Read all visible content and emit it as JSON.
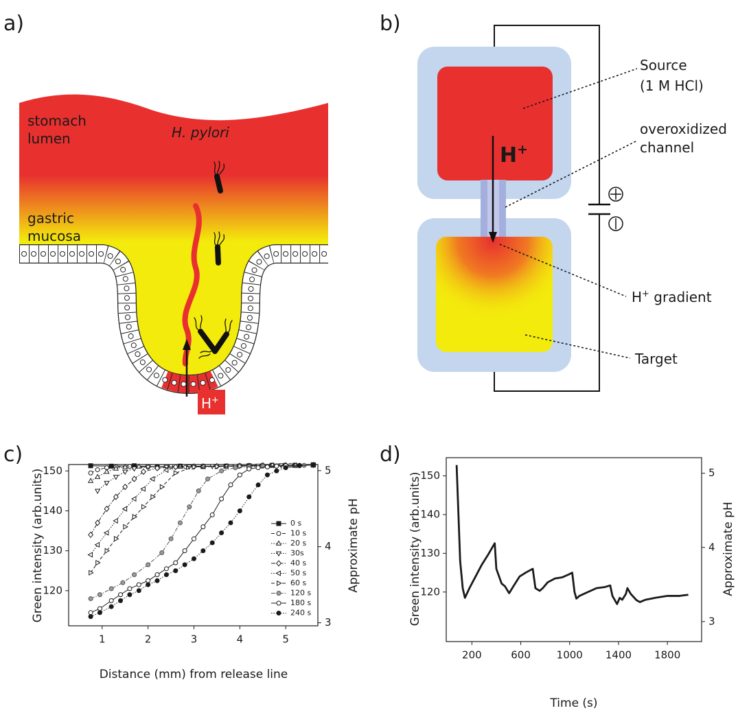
{
  "panel_labels": [
    "a)",
    "b)",
    "c)",
    "d)"
  ],
  "diagram_a": {
    "lumen": [
      "stomach",
      "lumen"
    ],
    "bacteria": "H. pylori",
    "mucosa": [
      "gastric",
      "mucosa"
    ],
    "proton": {
      "base": "H",
      "sup": "+"
    }
  },
  "diagram_b": {
    "source": [
      "Source",
      "(1 M HCl)"
    ],
    "channel": [
      "overoxidized",
      "channel"
    ],
    "gradient": {
      "base": "H",
      "sup": "+",
      "rest": " gradient"
    },
    "target": "Target",
    "proton": {
      "base": "H",
      "sup": "+"
    }
  },
  "chart_data": [
    {
      "type": "line",
      "xlabel": "Distance (mm) from release line",
      "ylabel": "Green intensity (arb.units)",
      "y2label": "Approximate pH",
      "xlim": [
        0.27,
        5.7
      ],
      "xticks": [
        1,
        2,
        3,
        4,
        5
      ],
      "ylim": [
        111.2,
        151.6
      ],
      "yticks": [
        120,
        130,
        140,
        150
      ],
      "y2lim": [
        2.96,
        5.08
      ],
      "y2ticks": [
        3,
        4,
        5
      ],
      "legend": "right",
      "series": [
        {
          "name": "0 s",
          "color": "#1a1a1a",
          "marker": "square",
          "marker_fill": "#1a1a1a",
          "linestyle": "solid",
          "x": [
            0.75,
            1.2,
            1.7,
            2.2,
            2.7,
            3.2,
            3.7,
            4.2,
            4.7,
            5.2,
            5.6
          ],
          "values": [
            151.3,
            151.2,
            151.3,
            151.0,
            151.2,
            151.1,
            151.2,
            151.3,
            151.4,
            151.4,
            151.5
          ]
        },
        {
          "name": "10 s",
          "color": "#1a1a1a",
          "marker": "circle",
          "marker_fill": "#ffffff",
          "linestyle": "dashed",
          "x": [
            0.75,
            0.9,
            1.1,
            1.3,
            1.6,
            2.0,
            2.5,
            3.0,
            3.5,
            4.0,
            4.5,
            5.0,
            5.6
          ],
          "values": [
            149.5,
            150.3,
            150.8,
            151.0,
            151.1,
            151.0,
            151.1,
            151.2,
            151.2,
            151.3,
            151.4,
            151.4,
            151.5
          ]
        },
        {
          "name": "20 s",
          "color": "#1a1a1a",
          "marker": "triangle-up",
          "marker_fill": "#ffffff",
          "linestyle": "dotted",
          "x": [
            0.75,
            0.9,
            1.1,
            1.3,
            1.5,
            1.8,
            2.2,
            2.7,
            3.2,
            3.7,
            4.2,
            4.7,
            5.2,
            5.6
          ],
          "values": [
            147.5,
            148.5,
            149.8,
            150.6,
            151.0,
            151.1,
            151.0,
            151.1,
            151.2,
            151.2,
            151.3,
            151.4,
            151.4,
            151.5
          ]
        },
        {
          "name": "30s",
          "color": "#1a1a1a",
          "marker": "triangle-down",
          "marker_fill": "#ffffff",
          "linestyle": "dotted",
          "x": [
            0.9,
            1.1,
            1.3,
            1.5,
            1.7,
            2.0,
            2.4,
            2.9,
            3.4,
            3.9,
            4.4,
            4.9,
            5.6
          ],
          "values": [
            145,
            147,
            148.5,
            149.8,
            150.6,
            151,
            151,
            151.1,
            151.2,
            151.2,
            151.3,
            151.4,
            151.5
          ]
        },
        {
          "name": "40 s",
          "color": "#1a1a1a",
          "marker": "diamond",
          "marker_fill": "#ffffff",
          "linestyle": "dashdot",
          "x": [
            0.75,
            0.9,
            1.1,
            1.3,
            1.5,
            1.7,
            1.9,
            2.2,
            2.6,
            3.0,
            3.5,
            4.0,
            4.5,
            5.0,
            5.6
          ],
          "values": [
            134,
            137,
            140.5,
            143.5,
            146,
            148,
            149.8,
            150.7,
            151,
            151.1,
            151.2,
            151.3,
            151.4,
            151.4,
            151.5
          ]
        },
        {
          "name": "50 s",
          "color": "#1a1a1a",
          "marker": "triangle-left",
          "marker_fill": "#ffffff",
          "linestyle": "dotted",
          "x": [
            0.75,
            0.9,
            1.1,
            1.3,
            1.5,
            1.7,
            1.9,
            2.1,
            2.4,
            2.8,
            3.2,
            3.7,
            4.2,
            4.7,
            5.2,
            5.6
          ],
          "values": [
            129,
            131.5,
            134.5,
            137.5,
            140.5,
            143,
            145.5,
            148,
            150.2,
            151,
            151.1,
            151.2,
            151.3,
            151.4,
            151.4,
            151.5
          ]
        },
        {
          "name": "60 s",
          "color": "#1a1a1a",
          "marker": "triangle-right",
          "marker_fill": "#ffffff",
          "linestyle": "dashed",
          "x": [
            0.75,
            0.9,
            1.1,
            1.3,
            1.5,
            1.7,
            1.9,
            2.1,
            2.3,
            2.6,
            3.0,
            3.5,
            4.0,
            4.5,
            5.0,
            5.6
          ],
          "values": [
            124.5,
            127,
            130,
            133,
            136,
            138.5,
            141,
            143.5,
            146,
            149.5,
            151,
            151.1,
            151.2,
            151.3,
            151.4,
            151.5
          ]
        },
        {
          "name": "120 s",
          "color": "#555555",
          "marker": "circle",
          "marker_fill": "#9a9a9a",
          "linestyle": "dashdot",
          "x": [
            0.75,
            0.95,
            1.2,
            1.45,
            1.7,
            2.0,
            2.3,
            2.5,
            2.7,
            2.9,
            3.1,
            3.3,
            3.6,
            3.9,
            4.2,
            4.5,
            4.8,
            5.1,
            5.4,
            5.6
          ],
          "values": [
            118,
            119,
            120.5,
            122,
            124,
            126.5,
            129.5,
            133,
            137,
            141,
            145,
            148,
            150,
            150.8,
            151,
            151.2,
            151.3,
            151.4,
            151.4,
            151.5
          ]
        },
        {
          "name": "180 s",
          "color": "#1a1a1a",
          "marker": "circle",
          "marker_fill": "#ffffff",
          "linestyle": "solid",
          "x": [
            0.75,
            0.95,
            1.2,
            1.4,
            1.6,
            1.8,
            2.0,
            2.2,
            2.4,
            2.6,
            2.8,
            3.0,
            3.2,
            3.4,
            3.6,
            3.8,
            4.0,
            4.2,
            4.4,
            4.6,
            4.8,
            5.0,
            5.3,
            5.6
          ],
          "values": [
            114.5,
            115.5,
            117.5,
            119,
            120.5,
            121.5,
            122.5,
            124,
            125.5,
            127,
            130,
            133,
            136,
            139,
            143,
            146.5,
            149,
            150.5,
            150.8,
            151,
            151.2,
            151.3,
            151.4,
            151.5
          ]
        },
        {
          "name": "240 s",
          "color": "#1a1a1a",
          "marker": "circle",
          "marker_fill": "#1a1a1a",
          "linestyle": "dotted",
          "x": [
            0.75,
            0.95,
            1.2,
            1.4,
            1.6,
            1.8,
            2.0,
            2.2,
            2.4,
            2.6,
            2.8,
            3.0,
            3.2,
            3.4,
            3.6,
            3.8,
            4.0,
            4.2,
            4.4,
            4.6,
            4.8,
            5.0,
            5.3,
            5.6
          ],
          "values": [
            113.5,
            114.5,
            116,
            117.5,
            119,
            120,
            121.5,
            122.5,
            124,
            125,
            126.5,
            128,
            130,
            132,
            134.5,
            137,
            140,
            143.5,
            146.5,
            149,
            150,
            150.8,
            151.3,
            151.5
          ]
        }
      ]
    },
    {
      "type": "line",
      "xlabel": "Time (s)",
      "ylabel": "Green intensity (arb.units)",
      "y2label": "Approximate pH",
      "xlim": [
        -10,
        2080
      ],
      "xticks": [
        200,
        600,
        1000,
        1400,
        1800
      ],
      "ylim": [
        107.2,
        154.7
      ],
      "yticks": [
        120,
        130,
        140,
        150
      ],
      "y2lim": [
        2.73,
        5.21
      ],
      "y2ticks": [
        3,
        4,
        5
      ],
      "color": "#1a1a1a",
      "x": [
        75,
        90,
        104,
        125,
        143,
        180,
        230,
        280,
        330,
        387,
        400,
        443,
        470,
        505,
        540,
        590,
        640,
        698,
        720,
        755,
        780,
        820,
        880,
        940,
        990,
        1021,
        1040,
        1055,
        1080,
        1150,
        1220,
        1290,
        1332,
        1350,
        1388,
        1410,
        1430,
        1460,
        1473,
        1500,
        1547,
        1575,
        1620,
        1700,
        1800,
        1900,
        1971
      ],
      "values": [
        152.8,
        140,
        128,
        121,
        118.5,
        121,
        124,
        127,
        129.5,
        132.6,
        126,
        122.2,
        121.5,
        119.7,
        121.5,
        124,
        125,
        126,
        121,
        120.3,
        121,
        122.5,
        123.5,
        123.8,
        124.5,
        125,
        120,
        118.3,
        119,
        120,
        121,
        121.3,
        121.7,
        119,
        116.9,
        118.5,
        118,
        119.5,
        121,
        119.5,
        117.9,
        117.4,
        118,
        118.5,
        119,
        119,
        119.3
      ]
    }
  ]
}
